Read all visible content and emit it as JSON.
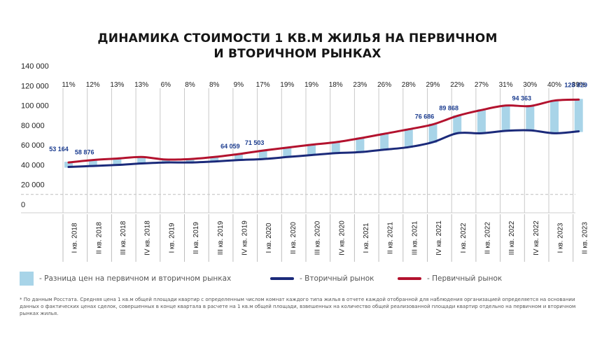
{
  "title_line1": "ДИНАМИКА СТОИМОСТИ 1 КВ.М ЖИЛЬЯ НА ПЕРВИЧНОМ",
  "title_line2": "И ВТОРИЧНОМ РЫНКАХ",
  "colors": {
    "primary": "#b3122e",
    "secondary": "#1b2a7a",
    "difference": "#a8d4e8",
    "labels": "#1b3c8f"
  },
  "legend": {
    "difference": "- Разница цен на первичном и вторичном рынках",
    "secondary": "- Вторичный рынок",
    "primary": "- Первичный рынок"
  },
  "footnote": "* По данным Росстата. Средняя цена 1 кв.м общей площади квартир с определенным числом комнат каждого типа жилья в отчете каждой отобранной для наблюдения организацией определяется на основании данных о фактических ценах сделок, совершенных в конце квартала в расчете на 1 кв.м общей площади, взвешенных на количество общей реализованной площади квартир отдельно на первичном и вторичном рынках жилья.",
  "chart_data": {
    "type": "line",
    "ylim": [
      0,
      140000
    ],
    "y_ticks": [
      "0",
      "20 000",
      "40 000",
      "60 000",
      "80 000",
      "100 000",
      "120 000",
      "140 000"
    ],
    "y_tick_values": [
      0,
      20000,
      40000,
      60000,
      80000,
      100000,
      120000,
      140000
    ],
    "categories": [
      "I кв. 2018",
      "II кв. 2018",
      "III кв. 2018",
      "IV кв. 2018",
      "I кв. 2019",
      "II кв. 2019",
      "III кв. 2019",
      "IV кв. 2019",
      "I кв. 2020",
      "II кв. 2020",
      "III кв. 2020",
      "IV кв. 2020",
      "I кв. 2021",
      "II кв. 2021",
      "III кв. 2021",
      "IV кв. 2021",
      "I кв. 2022",
      "II кв. 2022",
      "III кв. 2022",
      "IV кв. 2022",
      "I кв. 2023",
      "II кв. 2023"
    ],
    "difference_pct": [
      "11%",
      "12%",
      "13%",
      "13%",
      "6%",
      "8%",
      "8%",
      "9%",
      "17%",
      "19%",
      "19%",
      "18%",
      "23%",
      "26%",
      "28%",
      "29%",
      "22%",
      "27%",
      "31%",
      "30%",
      "40%",
      "39%"
    ],
    "series": [
      {
        "name": "Первичный рынок",
        "values": [
          48000,
          50500,
          52000,
          53500,
          51000,
          51500,
          53500,
          56500,
          60000,
          63000,
          66000,
          68500,
          72500,
          77000,
          81500,
          86500,
          95000,
          101000,
          105500,
          105000,
          110500,
          111500
        ]
      },
      {
        "name": "Вторичный рынок",
        "values": [
          43500,
          44500,
          45500,
          47000,
          48000,
          48000,
          49000,
          50500,
          51500,
          53500,
          55500,
          57500,
          58500,
          61000,
          63500,
          68500,
          77500,
          77500,
          80000,
          80500,
          77500,
          79500
        ]
      }
    ],
    "value_labels": [
      {
        "index": 0,
        "text": "53 164"
      },
      {
        "index": 1,
        "text": "58 876"
      },
      {
        "index": 7,
        "text": "64 059"
      },
      {
        "index": 8,
        "text": "71 503"
      },
      {
        "index": 15,
        "text": "76 686"
      },
      {
        "index": 16,
        "text": "89 868"
      },
      {
        "index": 19,
        "text": "94 363"
      },
      {
        "index": 21,
        "text": "128 829"
      }
    ]
  }
}
